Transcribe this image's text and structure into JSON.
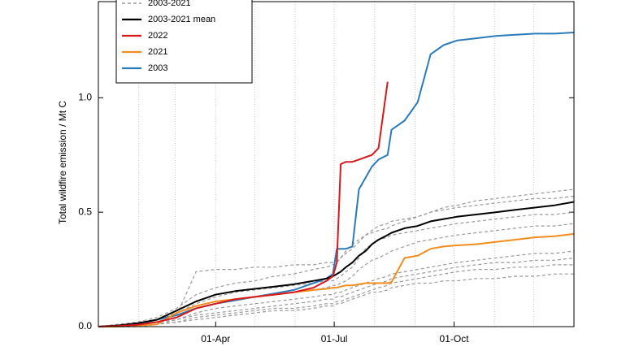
{
  "chart_data": {
    "type": "line",
    "y_label": "Total wildfire emission / Mt C",
    "x": [
      0,
      15,
      30,
      45,
      60,
      75,
      90,
      105,
      120,
      135,
      150,
      165,
      175,
      180,
      183,
      186,
      190,
      195,
      200,
      205,
      210,
      215,
      222,
      225,
      235,
      245,
      255,
      265,
      275,
      290,
      305,
      320,
      335,
      350,
      365
    ],
    "xlim": [
      0,
      365
    ],
    "xticks": [
      {
        "value": 90,
        "label": "01-Apr"
      },
      {
        "value": 181,
        "label": "01-Jul"
      },
      {
        "value": 273,
        "label": "01-Oct"
      }
    ],
    "xgrid": [
      31,
      59,
      90,
      120,
      151,
      181,
      212,
      243,
      273,
      304,
      334
    ],
    "ylim": [
      0,
      1.42
    ],
    "yticks": [
      {
        "value": 0,
        "label": "0.0"
      },
      {
        "value": 0.5,
        "label": "0.5"
      },
      {
        "value": 1,
        "label": "1.0"
      }
    ],
    "legend": "upper left",
    "series": [
      {
        "name": "2003-2021",
        "color": "#9a9a9a",
        "dashed": true,
        "values": [
          [
            0,
            0.01,
            0.02,
            0.04,
            0.08,
            0.14,
            0.17,
            0.19,
            0.2,
            0.22,
            0.23,
            0.25,
            0.26,
            0.27,
            0.28,
            0.3,
            0.33,
            0.36,
            0.38,
            0.4,
            0.42,
            0.44,
            0.45,
            0.46,
            0.47,
            0.48,
            0.5,
            0.52,
            0.53,
            0.55,
            0.56,
            0.57,
            0.58,
            0.59,
            0.6
          ],
          [
            0,
            0,
            0.01,
            0.02,
            0.05,
            0.24,
            0.25,
            0.25,
            0.26,
            0.26,
            0.27,
            0.27,
            0.28,
            0.28,
            0.29,
            0.3,
            0.32,
            0.34,
            0.37,
            0.4,
            0.41,
            0.42,
            0.43,
            0.44,
            0.46,
            0.48,
            0.5,
            0.51,
            0.52,
            0.53,
            0.54,
            0.55,
            0.56,
            0.56,
            0.57
          ],
          [
            0,
            0.01,
            0.01,
            0.03,
            0.06,
            0.1,
            0.13,
            0.15,
            0.16,
            0.17,
            0.18,
            0.19,
            0.2,
            0.2,
            0.21,
            0.22,
            0.24,
            0.26,
            0.3,
            0.34,
            0.36,
            0.38,
            0.39,
            0.4,
            0.41,
            0.42,
            0.43,
            0.44,
            0.45,
            0.46,
            0.47,
            0.48,
            0.49,
            0.49,
            0.5
          ],
          [
            0,
            0,
            0.01,
            0.02,
            0.04,
            0.08,
            0.1,
            0.12,
            0.13,
            0.14,
            0.15,
            0.16,
            0.17,
            0.18,
            0.18,
            0.19,
            0.2,
            0.22,
            0.25,
            0.27,
            0.29,
            0.3,
            0.32,
            0.33,
            0.35,
            0.37,
            0.38,
            0.39,
            0.4,
            0.41,
            0.42,
            0.43,
            0.44,
            0.44,
            0.45
          ],
          [
            0,
            0,
            0,
            0.01,
            0.03,
            0.06,
            0.08,
            0.09,
            0.1,
            0.11,
            0.12,
            0.13,
            0.14,
            0.14,
            0.15,
            0.15,
            0.16,
            0.17,
            0.18,
            0.19,
            0.2,
            0.21,
            0.22,
            0.23,
            0.24,
            0.25,
            0.26,
            0.27,
            0.28,
            0.29,
            0.3,
            0.31,
            0.32,
            0.32,
            0.33
          ],
          [
            0,
            0,
            0.01,
            0.02,
            0.03,
            0.05,
            0.06,
            0.07,
            0.08,
            0.09,
            0.1,
            0.11,
            0.12,
            0.12,
            0.13,
            0.13,
            0.14,
            0.15,
            0.16,
            0.17,
            0.18,
            0.19,
            0.2,
            0.21,
            0.22,
            0.23,
            0.24,
            0.25,
            0.26,
            0.27,
            0.28,
            0.28,
            0.29,
            0.29,
            0.3
          ],
          [
            0,
            0,
            0,
            0.01,
            0.02,
            0.04,
            0.05,
            0.06,
            0.07,
            0.08,
            0.08,
            0.09,
            0.1,
            0.1,
            0.11,
            0.11,
            0.12,
            0.13,
            0.14,
            0.15,
            0.16,
            0.17,
            0.18,
            0.19,
            0.2,
            0.21,
            0.22,
            0.23,
            0.24,
            0.25,
            0.25,
            0.26,
            0.26,
            0.27,
            0.27
          ],
          [
            0,
            0,
            0,
            0.01,
            0.02,
            0.03,
            0.04,
            0.05,
            0.06,
            0.07,
            0.07,
            0.08,
            0.09,
            0.09,
            0.1,
            0.1,
            0.11,
            0.12,
            0.13,
            0.14,
            0.15,
            0.15,
            0.16,
            0.17,
            0.18,
            0.19,
            0.19,
            0.2,
            0.2,
            0.21,
            0.21,
            0.22,
            0.22,
            0.23,
            0.23
          ]
        ]
      },
      {
        "name": "2003-2021 mean",
        "color": "#000000",
        "values": [
          0,
          0.005,
          0.015,
          0.03,
          0.07,
          0.11,
          0.14,
          0.155,
          0.165,
          0.175,
          0.185,
          0.2,
          0.21,
          0.22,
          0.23,
          0.24,
          0.26,
          0.28,
          0.31,
          0.33,
          0.36,
          0.38,
          0.4,
          0.41,
          0.43,
          0.44,
          0.46,
          0.47,
          0.48,
          0.49,
          0.5,
          0.51,
          0.52,
          0.53,
          0.545
        ]
      },
      {
        "name": "2022",
        "color": "#d7191c",
        "values": [
          0,
          0.003,
          0.008,
          0.02,
          0.04,
          0.08,
          0.1,
          0.12,
          0.13,
          0.14,
          0.15,
          0.17,
          0.2,
          0.22,
          0.28,
          0.71,
          0.72,
          0.72,
          0.73,
          0.74,
          0.75,
          0.78,
          1.07,
          null,
          null,
          null,
          null,
          null,
          null,
          null,
          null,
          null,
          null,
          null,
          null
        ]
      },
      {
        "name": "2021",
        "color": "#f28c1e",
        "values": [
          0,
          0,
          0.005,
          0.01,
          0.06,
          0.09,
          0.11,
          0.12,
          0.13,
          0.14,
          0.15,
          0.16,
          0.165,
          0.17,
          0.17,
          0.175,
          0.18,
          0.18,
          0.185,
          0.19,
          0.19,
          0.19,
          0.19,
          0.195,
          0.3,
          0.31,
          0.34,
          0.35,
          0.355,
          0.36,
          0.37,
          0.38,
          0.39,
          0.395,
          0.405
        ]
      },
      {
        "name": "2003",
        "color": "#2b7bba",
        "values": [
          0,
          0.005,
          0.01,
          0.03,
          0.05,
          0.08,
          0.1,
          0.115,
          0.13,
          0.145,
          0.16,
          0.19,
          0.21,
          0.23,
          0.34,
          0.34,
          0.34,
          0.35,
          0.6,
          0.65,
          0.7,
          0.73,
          0.75,
          0.86,
          0.9,
          0.98,
          1.19,
          1.23,
          1.25,
          1.26,
          1.27,
          1.275,
          1.28,
          1.28,
          1.285
        ]
      }
    ]
  }
}
